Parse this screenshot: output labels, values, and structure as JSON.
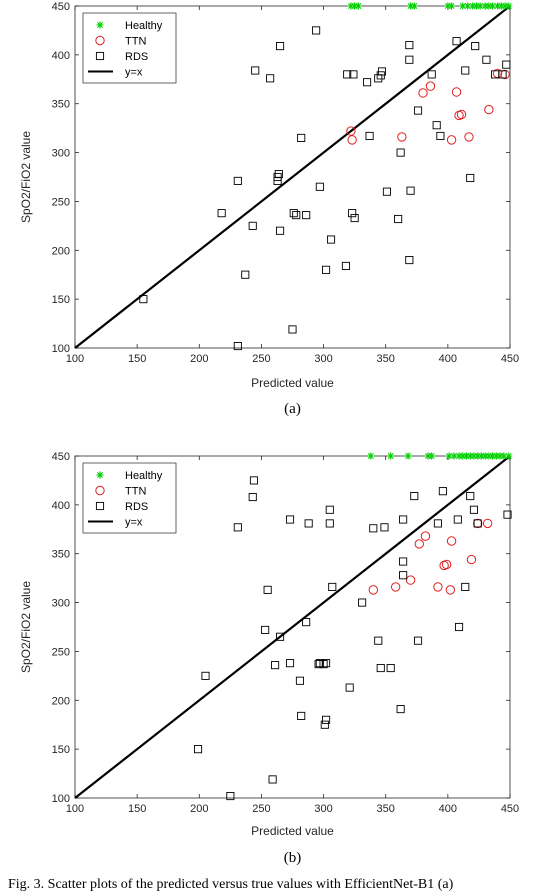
{
  "caption": "Fig. 3. Scatter plots of the predicted versus true values with EfficientNet-B1 (a)",
  "colors": {
    "healthy": "#00d000",
    "ttn": "#e02020",
    "rds": "#000000",
    "identity": "#000000"
  },
  "chart_data": [
    {
      "type": "scatter",
      "panel_label": "(a)",
      "xlabel": "Predicted value",
      "ylabel": "SpO2/FiO2 value",
      "xlim": [
        100,
        450
      ],
      "ylim": [
        100,
        450
      ],
      "xticks": [
        100,
        150,
        200,
        250,
        300,
        350,
        400,
        450
      ],
      "yticks": [
        100,
        150,
        200,
        250,
        300,
        350,
        400,
        450
      ],
      "grid": false,
      "legend_position": "top-left",
      "series": [
        {
          "name": "Healthy",
          "marker": "star",
          "points": [
            [
              322,
              450
            ],
            [
              325,
              450
            ],
            [
              328,
              450
            ],
            [
              370,
              450
            ],
            [
              373,
              450
            ],
            [
              400,
              450
            ],
            [
              403,
              450
            ],
            [
              412,
              450
            ],
            [
              416,
              450
            ],
            [
              420,
              450
            ],
            [
              423,
              450
            ],
            [
              426,
              450
            ],
            [
              430,
              450
            ],
            [
              433,
              450
            ],
            [
              436,
              450
            ],
            [
              440,
              450
            ],
            [
              443,
              450
            ],
            [
              446,
              450
            ],
            [
              449,
              450
            ]
          ]
        },
        {
          "name": "TTN",
          "marker": "circle",
          "points": [
            [
              322,
              322
            ],
            [
              323,
              313
            ],
            [
              363,
              316
            ],
            [
              380,
              361
            ],
            [
              386,
              368
            ],
            [
              403,
              313
            ],
            [
              407,
              362
            ],
            [
              409,
              338
            ],
            [
              411,
              339
            ],
            [
              417,
              316
            ],
            [
              433,
              344
            ],
            [
              440,
              381
            ],
            [
              446,
              380
            ]
          ]
        },
        {
          "name": "RDS",
          "marker": "square",
          "points": [
            [
              155,
              150
            ],
            [
              218,
              238
            ],
            [
              231,
              102
            ],
            [
              231,
              271
            ],
            [
              237,
              175
            ],
            [
              243,
              225
            ],
            [
              245,
              384
            ],
            [
              257,
              376
            ],
            [
              263,
              271
            ],
            [
              263,
              275
            ],
            [
              264,
              278
            ],
            [
              265,
              220
            ],
            [
              265,
              409
            ],
            [
              275,
              119
            ],
            [
              276,
              238
            ],
            [
              278,
              236
            ],
            [
              282,
              315
            ],
            [
              286,
              236
            ],
            [
              294,
              425
            ],
            [
              297,
              265
            ],
            [
              302,
              180
            ],
            [
              306,
              211
            ],
            [
              318,
              184
            ],
            [
              319,
              380
            ],
            [
              323,
              238
            ],
            [
              324,
              380
            ],
            [
              325,
              233
            ],
            [
              335,
              372
            ],
            [
              337,
              317
            ],
            [
              344,
              376
            ],
            [
              346,
              379
            ],
            [
              347,
              383
            ],
            [
              351,
              260
            ],
            [
              360,
              232
            ],
            [
              362,
              300
            ],
            [
              369,
              190
            ],
            [
              369,
              395
            ],
            [
              369,
              410
            ],
            [
              370,
              261
            ],
            [
              376,
              343
            ],
            [
              387,
              380
            ],
            [
              391,
              328
            ],
            [
              394,
              317
            ],
            [
              407,
              414
            ],
            [
              414,
              384
            ],
            [
              418,
              274
            ],
            [
              422,
              409
            ],
            [
              431,
              395
            ],
            [
              438,
              380
            ],
            [
              444,
              380
            ],
            [
              447,
              390
            ]
          ]
        },
        {
          "name": "y=x",
          "type": "line",
          "x": [
            100,
            450
          ],
          "y": [
            100,
            450
          ]
        }
      ]
    },
    {
      "type": "scatter",
      "panel_label": "(b)",
      "xlabel": "Predicted value",
      "ylabel": "SpO2/FiO2 value",
      "xlim": [
        100,
        450
      ],
      "ylim": [
        100,
        450
      ],
      "xticks": [
        100,
        150,
        200,
        250,
        300,
        350,
        400,
        450
      ],
      "yticks": [
        100,
        150,
        200,
        250,
        300,
        350,
        400,
        450
      ],
      "grid": false,
      "legend_position": "top-left",
      "series": [
        {
          "name": "Healthy",
          "marker": "star",
          "points": [
            [
              338,
              450
            ],
            [
              354,
              450
            ],
            [
              368,
              450
            ],
            [
              384,
              450
            ],
            [
              387,
              450
            ],
            [
              401,
              450
            ],
            [
              405,
              450
            ],
            [
              409,
              450
            ],
            [
              412,
              450
            ],
            [
              415,
              450
            ],
            [
              418,
              450
            ],
            [
              421,
              450
            ],
            [
              424,
              450
            ],
            [
              427,
              450
            ],
            [
              430,
              450
            ],
            [
              433,
              450
            ],
            [
              436,
              450
            ],
            [
              439,
              450
            ],
            [
              442,
              450
            ],
            [
              445,
              450
            ],
            [
              449,
              450
            ]
          ]
        },
        {
          "name": "TTN",
          "marker": "circle",
          "points": [
            [
              340,
              313
            ],
            [
              358,
              316
            ],
            [
              370,
              323
            ],
            [
              377,
              360
            ],
            [
              382,
              368
            ],
            [
              392,
              316
            ],
            [
              397,
              338
            ],
            [
              399,
              339
            ],
            [
              402,
              313
            ],
            [
              403,
              363
            ],
            [
              419,
              344
            ],
            [
              424,
              381
            ],
            [
              432,
              381
            ]
          ]
        },
        {
          "name": "RDS",
          "marker": "square",
          "points": [
            [
              199,
              150
            ],
            [
              205,
              225
            ],
            [
              225,
              102
            ],
            [
              231,
              377
            ],
            [
              243,
              408
            ],
            [
              244,
              425
            ],
            [
              253,
              272
            ],
            [
              255,
              313
            ],
            [
              259,
              119
            ],
            [
              261,
              236
            ],
            [
              265,
              265
            ],
            [
              273,
              238
            ],
            [
              273,
              385
            ],
            [
              281,
              220
            ],
            [
              282,
              184
            ],
            [
              286,
              280
            ],
            [
              288,
              381
            ],
            [
              296,
              237
            ],
            [
              297,
              238
            ],
            [
              300,
              237
            ],
            [
              301,
              175
            ],
            [
              302,
              180
            ],
            [
              302,
              238
            ],
            [
              305,
              381
            ],
            [
              305,
              395
            ],
            [
              307,
              316
            ],
            [
              321,
              213
            ],
            [
              331,
              300
            ],
            [
              340,
              376
            ],
            [
              344,
              261
            ],
            [
              346,
              233
            ],
            [
              349,
              377
            ],
            [
              354,
              233
            ],
            [
              362,
              191
            ],
            [
              364,
              328
            ],
            [
              364,
              342
            ],
            [
              364,
              385
            ],
            [
              373,
              409
            ],
            [
              376,
              261
            ],
            [
              392,
              381
            ],
            [
              396,
              414
            ],
            [
              408,
              385
            ],
            [
              409,
              275
            ],
            [
              414,
              316
            ],
            [
              418,
              409
            ],
            [
              421,
              395
            ],
            [
              424,
              381
            ],
            [
              448,
              390
            ]
          ]
        },
        {
          "name": "y=x",
          "type": "line",
          "x": [
            100,
            450
          ],
          "y": [
            100,
            450
          ]
        }
      ]
    }
  ]
}
